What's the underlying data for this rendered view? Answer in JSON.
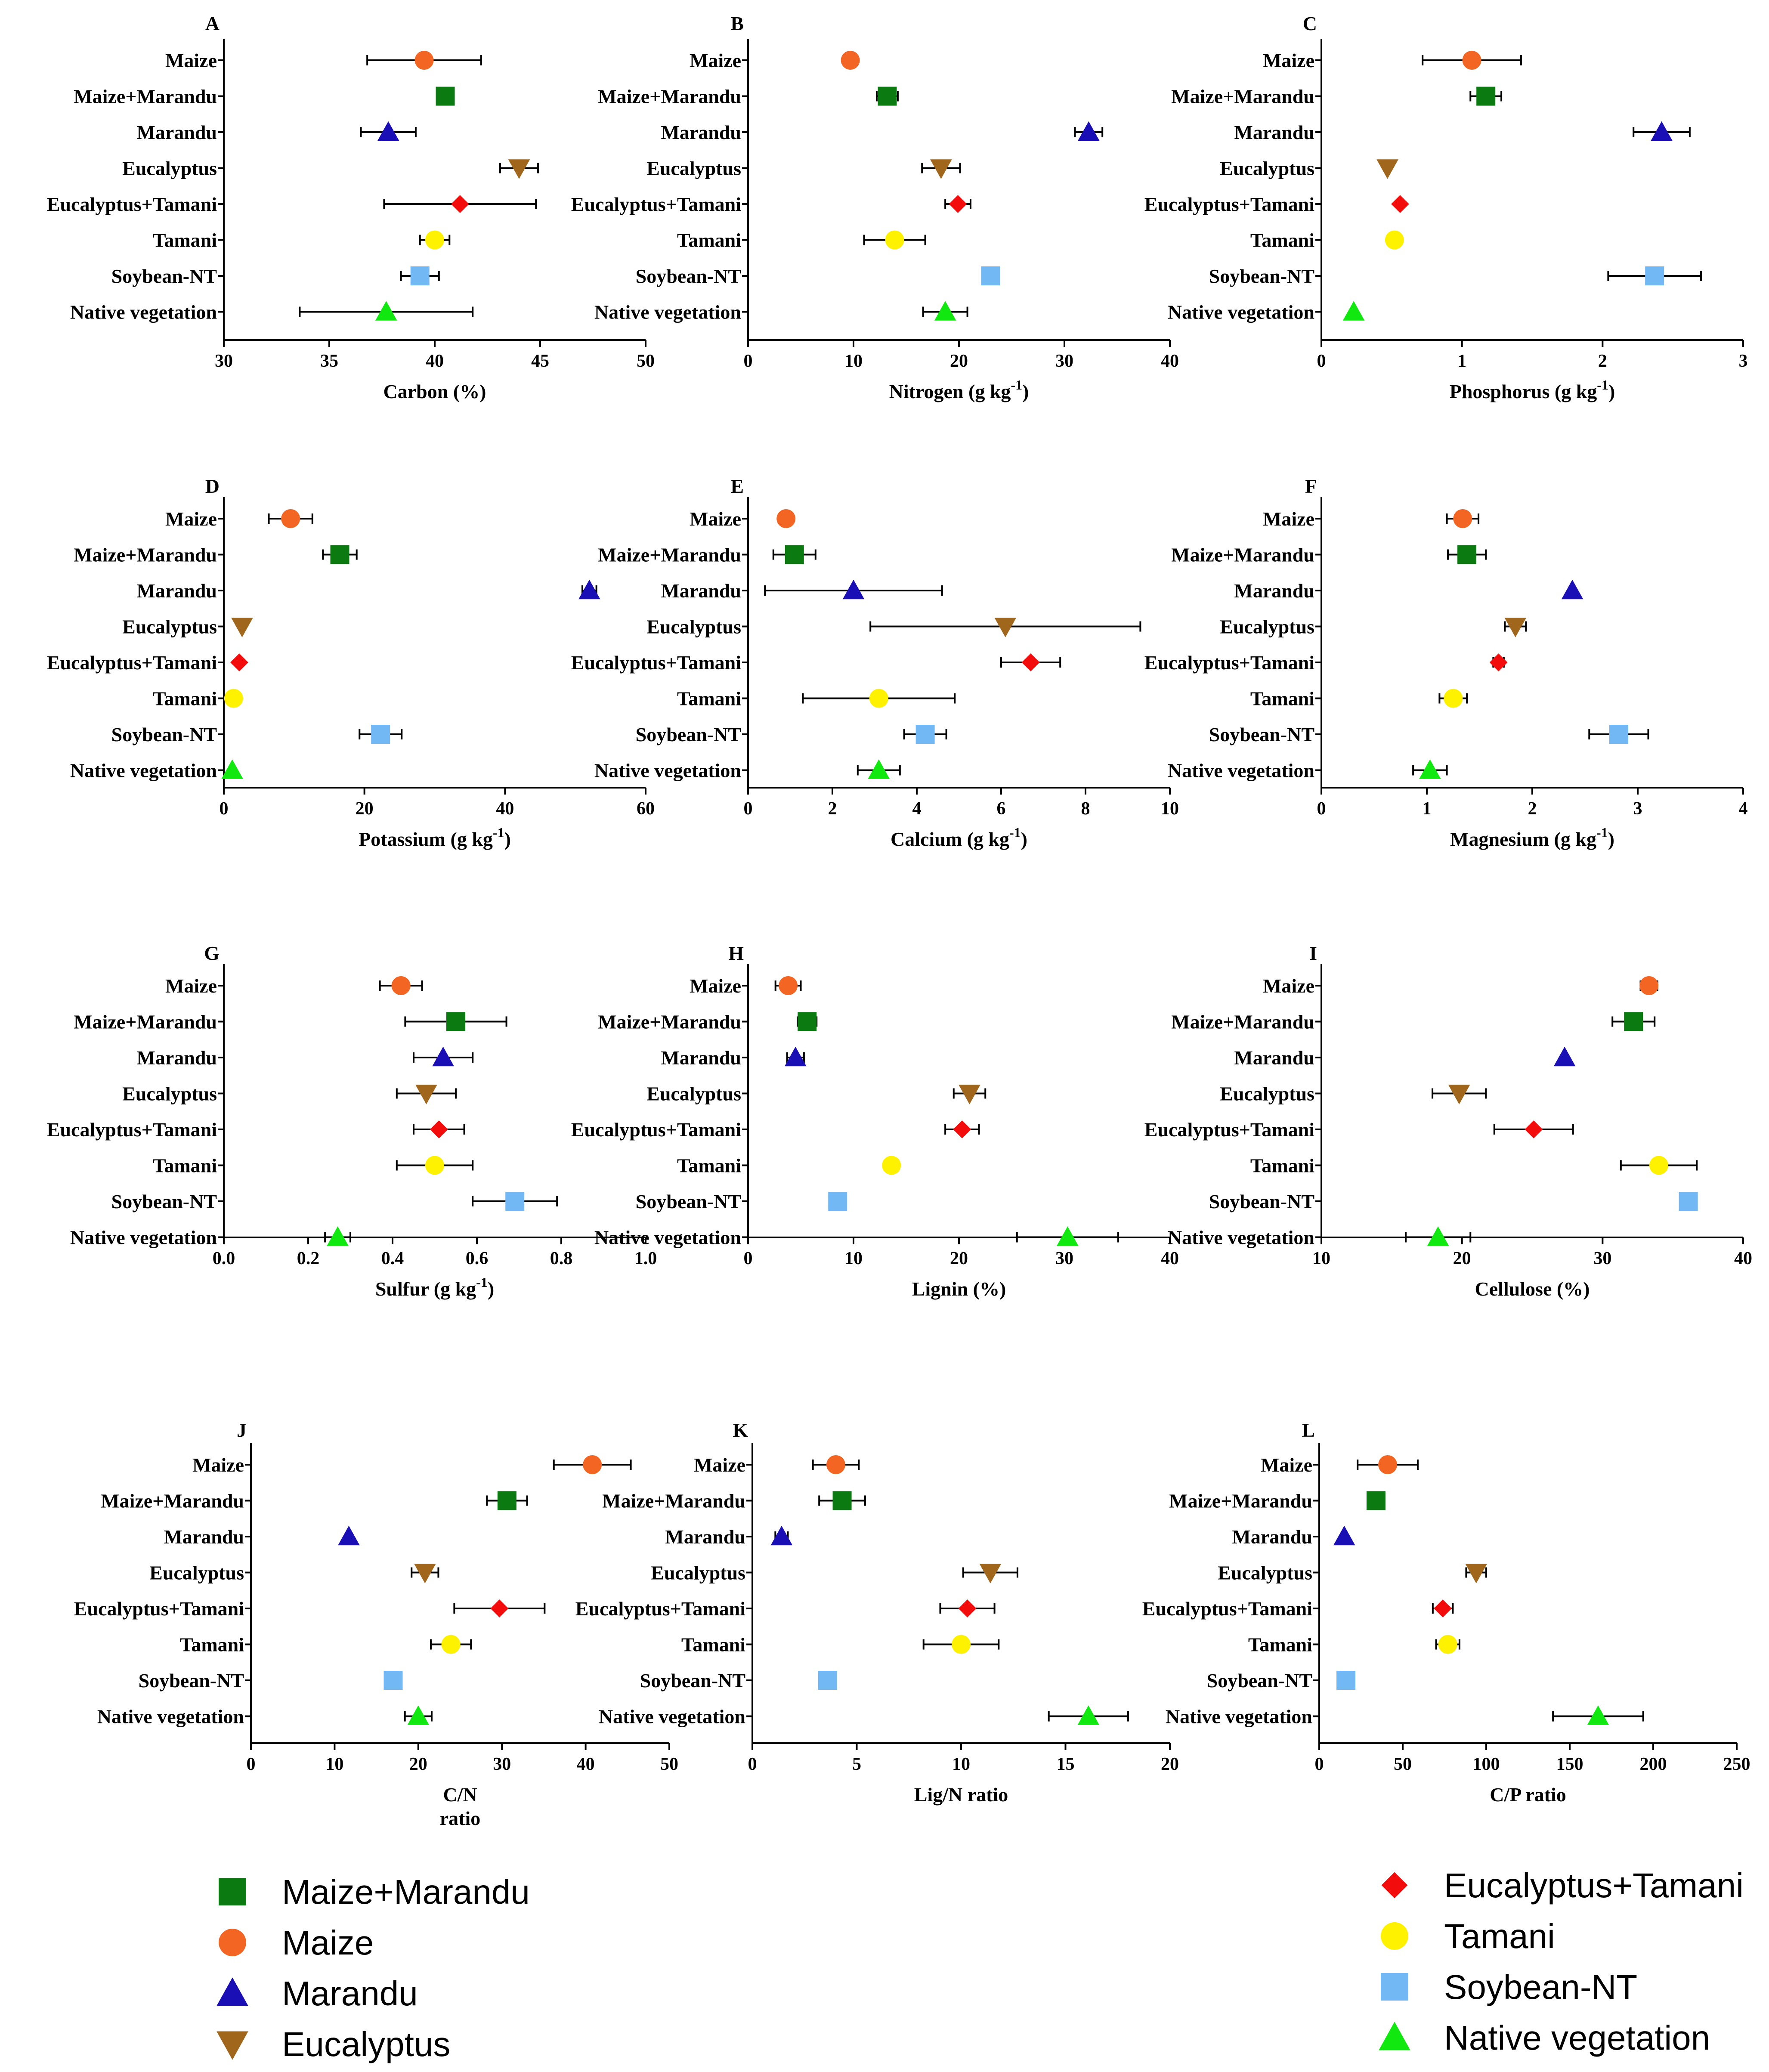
{
  "colors": {
    "Maize": "#F26522",
    "Maize+Marandu": "#0B7A10",
    "Marandu": "#1A0FB4",
    "Eucalyptus": "#A0661C",
    "Eucalyptus+Tamani": "#F20C0C",
    "Tamani": "#FFF200",
    "Soybean-NT": "#72B8F5",
    "Native vegetation": "#10E810"
  },
  "markers": {
    "Maize": "circle",
    "Maize+Marandu": "square",
    "Marandu": "triangle-up",
    "Eucalyptus": "triangle-down",
    "Eucalyptus+Tamani": "diamond",
    "Tamani": "circle",
    "Soybean-NT": "square",
    "Native vegetation": "triangle-up"
  },
  "legend_left": [
    "Maize+Marandu",
    "Maize",
    "Marandu",
    "Eucalyptus"
  ],
  "legend_right": [
    "Eucalyptus+Tamani",
    "Tamani",
    "Soybean-NT",
    "Native vegetation"
  ],
  "chart_data": [
    {
      "type": "scatter",
      "panel": "A",
      "xlabel": "Carbon (%)",
      "xlabel_super": "",
      "xlabel_line2": "",
      "xlim": [
        30,
        50
      ],
      "ticks": [
        30,
        35,
        40,
        45,
        50
      ],
      "tick_labels": [
        "30",
        "35",
        "40",
        "45",
        "50"
      ],
      "categories": [
        "Maize",
        "Maize+Marandu",
        "Marandu",
        "Eucalyptus",
        "Eucalyptus+Tamani",
        "Tamani",
        "Soybean-NT",
        "Native vegetation"
      ],
      "values": [
        39.5,
        40.5,
        37.8,
        44.0,
        41.2,
        40.0,
        39.3,
        37.7
      ],
      "errors": [
        2.7,
        0,
        1.3,
        0.9,
        3.6,
        0.7,
        0.9,
        4.1
      ]
    },
    {
      "type": "scatter",
      "panel": "B",
      "xlabel": "Nitrogen (g kg",
      "xlabel_super": "-1",
      "xlabel_line2": "",
      "xlim": [
        0,
        40
      ],
      "ticks": [
        0,
        10,
        20,
        30,
        40
      ],
      "tick_labels": [
        "0",
        "10",
        "20",
        "30",
        "40"
      ],
      "categories": [
        "Maize",
        "Maize+Marandu",
        "Marandu",
        "Eucalyptus",
        "Eucalyptus+Tamani",
        "Tamani",
        "Soybean-NT",
        "Native vegetation"
      ],
      "values": [
        9.7,
        13.2,
        32.3,
        18.3,
        19.9,
        13.9,
        23.0,
        18.7
      ],
      "errors": [
        0,
        1.0,
        1.3,
        1.8,
        1.2,
        2.9,
        0,
        2.1
      ]
    },
    {
      "type": "scatter",
      "panel": "C",
      "xlabel": "Phosphorus (g kg",
      "xlabel_super": "-1",
      "xlabel_line2": "",
      "xlim": [
        0,
        3
      ],
      "ticks": [
        0,
        1,
        2,
        3
      ],
      "tick_labels": [
        "0",
        "1",
        "2",
        "3"
      ],
      "categories": [
        "Maize",
        "Maize+Marandu",
        "Marandu",
        "Eucalyptus",
        "Eucalyptus+Tamani",
        "Tamani",
        "Soybean-NT",
        "Native vegetation"
      ],
      "values": [
        1.07,
        1.17,
        2.42,
        0.47,
        0.56,
        0.52,
        2.37,
        0.23
      ],
      "errors": [
        0.35,
        0.11,
        0.2,
        0,
        0,
        0,
        0.33,
        0
      ]
    },
    {
      "type": "scatter",
      "panel": "D",
      "xlabel": "Potassium (g kg",
      "xlabel_super": "-1",
      "xlabel_line2": "",
      "xlim": [
        0,
        60
      ],
      "ticks": [
        0,
        20,
        40,
        60
      ],
      "tick_labels": [
        "0",
        "20",
        "40",
        "60"
      ],
      "categories": [
        "Maize",
        "Maize+Marandu",
        "Marandu",
        "Eucalyptus",
        "Eucalyptus+Tamani",
        "Tamani",
        "Soybean-NT",
        "Native vegetation"
      ],
      "values": [
        9.5,
        16.5,
        52.0,
        2.6,
        2.2,
        1.4,
        22.3,
        1.2
      ],
      "errors": [
        3.1,
        2.4,
        1.0,
        0,
        0,
        0,
        3.0,
        0
      ]
    },
    {
      "type": "scatter",
      "panel": "E",
      "xlabel": "Calcium (g kg",
      "xlabel_super": "-1",
      "xlabel_line2": "",
      "xlim": [
        0,
        10
      ],
      "ticks": [
        0,
        2,
        4,
        6,
        8,
        10
      ],
      "tick_labels": [
        "0",
        "2",
        "4",
        "6",
        "8",
        "10"
      ],
      "categories": [
        "Maize",
        "Maize+Marandu",
        "Marandu",
        "Eucalyptus",
        "Eucalyptus+Tamani",
        "Tamani",
        "Soybean-NT",
        "Native vegetation"
      ],
      "values": [
        0.9,
        1.1,
        2.5,
        6.1,
        6.7,
        3.1,
        4.2,
        3.1
      ],
      "errors": [
        0,
        0.5,
        2.1,
        3.2,
        0.7,
        1.8,
        0.5,
        0.5
      ]
    },
    {
      "type": "scatter",
      "panel": "F",
      "xlabel": "Magnesium (g kg",
      "xlabel_super": "-1",
      "xlabel_line2": "",
      "xlim": [
        0,
        4
      ],
      "ticks": [
        0,
        1,
        2,
        3,
        4
      ],
      "tick_labels": [
        "0",
        "1",
        "2",
        "3",
        "4"
      ],
      "categories": [
        "Maize",
        "Maize+Marandu",
        "Marandu",
        "Eucalyptus",
        "Eucalyptus+Tamani",
        "Tamani",
        "Soybean-NT",
        "Native vegetation"
      ],
      "values": [
        1.34,
        1.38,
        2.38,
        1.84,
        1.68,
        1.25,
        2.82,
        1.03
      ],
      "errors": [
        0.15,
        0.18,
        0,
        0.1,
        0.05,
        0.13,
        0.28,
        0.16
      ]
    },
    {
      "type": "scatter",
      "panel": "G",
      "xlabel": "Sulfur (g kg",
      "xlabel_super": "-1",
      "xlabel_line2": "",
      "xlim": [
        0,
        1
      ],
      "ticks": [
        0,
        0.2,
        0.4,
        0.6,
        0.8,
        1.0
      ],
      "tick_labels": [
        "0.0",
        "0.2",
        "0.4",
        "0.6",
        "0.8",
        "1.0"
      ],
      "categories": [
        "Maize",
        "Maize+Marandu",
        "Marandu",
        "Eucalyptus",
        "Eucalyptus+Tamani",
        "Tamani",
        "Soybean-NT",
        "Native vegetation"
      ],
      "values": [
        0.42,
        0.55,
        0.52,
        0.48,
        0.51,
        0.5,
        0.69,
        0.27
      ],
      "errors": [
        0.05,
        0.12,
        0.07,
        0.07,
        0.06,
        0.09,
        0.1,
        0.03
      ]
    },
    {
      "type": "scatter",
      "panel": "H",
      "xlabel": "Lignin (%)",
      "xlabel_super": "",
      "xlabel_line2": "",
      "xlim": [
        0,
        40
      ],
      "ticks": [
        0,
        10,
        20,
        30,
        40
      ],
      "tick_labels": [
        "0",
        "10",
        "20",
        "30",
        "40"
      ],
      "categories": [
        "Maize",
        "Maize+Marandu",
        "Marandu",
        "Eucalyptus",
        "Eucalyptus+Tamani",
        "Tamani",
        "Soybean-NT",
        "Native vegetation"
      ],
      "values": [
        3.8,
        5.6,
        4.5,
        21.0,
        20.3,
        13.6,
        8.5,
        30.3
      ],
      "errors": [
        1.2,
        0.9,
        0.8,
        1.5,
        1.6,
        0,
        0,
        4.8
      ]
    },
    {
      "type": "scatter",
      "panel": "I",
      "xlabel": "Cellulose (%)",
      "xlabel_super": "",
      "xlabel_line2": "",
      "xlim": [
        10,
        40
      ],
      "ticks": [
        10,
        20,
        30,
        40
      ],
      "tick_labels": [
        "10",
        "20",
        "30",
        "40"
      ],
      "categories": [
        "Maize",
        "Maize+Marandu",
        "Marandu",
        "Eucalyptus",
        "Eucalyptus+Tamani",
        "Tamani",
        "Soybean-NT",
        "Native vegetation"
      ],
      "values": [
        33.3,
        32.2,
        27.3,
        19.8,
        25.1,
        34.0,
        36.1,
        18.3
      ],
      "errors": [
        0.6,
        1.5,
        0,
        1.9,
        2.8,
        2.7,
        0,
        2.3
      ]
    },
    {
      "type": "scatter",
      "panel": "J",
      "xlabel": "C/N",
      "xlabel_super": "",
      "xlabel_line2": "ratio",
      "xlim": [
        0,
        50
      ],
      "ticks": [
        0,
        10,
        20,
        30,
        40,
        50
      ],
      "tick_labels": [
        "0",
        "10",
        "20",
        "30",
        "40",
        "50"
      ],
      "categories": [
        "Maize",
        "Maize+Marandu",
        "Marandu",
        "Eucalyptus",
        "Eucalyptus+Tamani",
        "Tamani",
        "Soybean-NT",
        "Native vegetation"
      ],
      "values": [
        40.8,
        30.6,
        11.7,
        20.8,
        29.7,
        23.9,
        17.0,
        20.0
      ],
      "errors": [
        4.6,
        2.4,
        0,
        1.6,
        5.4,
        2.4,
        0,
        1.6
      ]
    },
    {
      "type": "scatter",
      "panel": "K",
      "xlabel": "Lig/N ratio",
      "xlabel_super": "",
      "xlabel_line2": "",
      "xlim": [
        0,
        20
      ],
      "ticks": [
        0,
        5,
        10,
        15,
        20
      ],
      "tick_labels": [
        "0",
        "5",
        "10",
        "15",
        "20"
      ],
      "categories": [
        "Maize",
        "Maize+Marandu",
        "Marandu",
        "Eucalyptus",
        "Eucalyptus+Tamani",
        "Tamani",
        "Soybean-NT",
        "Native vegetation"
      ],
      "values": [
        4.0,
        4.3,
        1.4,
        11.4,
        10.3,
        10.0,
        3.6,
        16.1
      ],
      "errors": [
        1.1,
        1.1,
        0.3,
        1.3,
        1.3,
        1.8,
        0,
        1.9
      ]
    },
    {
      "type": "scatter",
      "panel": "L",
      "xlabel": "C/P ratio",
      "xlabel_super": "",
      "xlabel_line2": "",
      "xlim": [
        0,
        250
      ],
      "ticks": [
        0,
        50,
        100,
        150,
        200,
        250
      ],
      "tick_labels": [
        "0",
        "50",
        "100",
        "150",
        "200",
        "250"
      ],
      "categories": [
        "Maize",
        "Maize+Marandu",
        "Marandu",
        "Eucalyptus",
        "Eucalyptus+Tamani",
        "Tamani",
        "Soybean-NT",
        "Native vegetation"
      ],
      "values": [
        41,
        34,
        15,
        94,
        74,
        77,
        16,
        167
      ],
      "errors": [
        18,
        0,
        0,
        6,
        6,
        7,
        0,
        27
      ]
    }
  ]
}
